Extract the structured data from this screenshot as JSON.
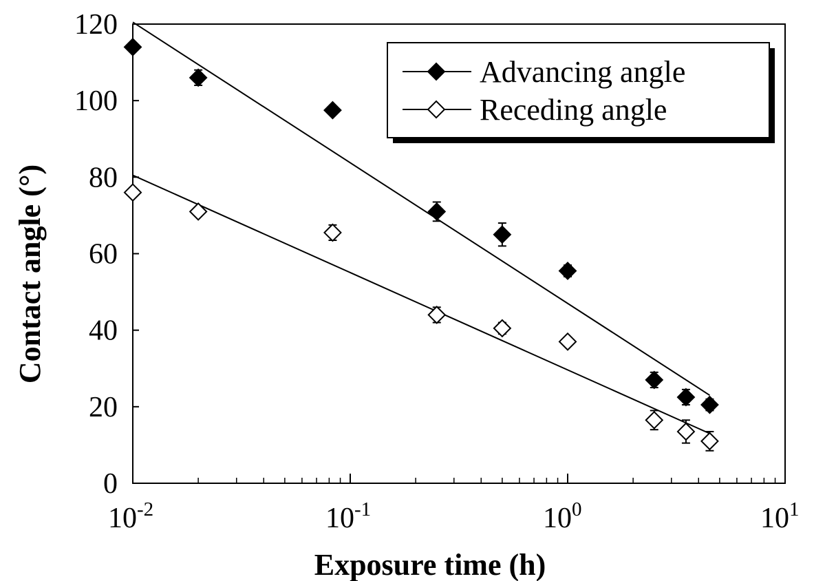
{
  "chart_data": {
    "type": "scatter",
    "xlabel": "Exposure time (h)",
    "ylabel": "Contact angle (°)",
    "x_scale": "log",
    "xlim": [
      0.01,
      10
    ],
    "ylim": [
      0,
      120
    ],
    "grid": false,
    "legend_position": "top-right",
    "x_ticks": [
      {
        "value": 0.01,
        "base": "10",
        "exp": "-2"
      },
      {
        "value": 0.1,
        "base": "10",
        "exp": "-1"
      },
      {
        "value": 1,
        "base": "10",
        "exp": "0"
      },
      {
        "value": 10,
        "base": "10",
        "exp": "1"
      }
    ],
    "y_ticks": [
      0,
      20,
      40,
      60,
      80,
      100,
      120
    ],
    "series": [
      {
        "name": "Advancing angle",
        "marker": "diamond-filled",
        "color": "#000000",
        "points": [
          {
            "x": 0.01,
            "y": 114,
            "err": 1
          },
          {
            "x": 0.02,
            "y": 106,
            "err": 2
          },
          {
            "x": 0.083,
            "y": 97.5,
            "err": 1
          },
          {
            "x": 0.25,
            "y": 71,
            "err": 2.5
          },
          {
            "x": 0.5,
            "y": 65,
            "err": 3
          },
          {
            "x": 1,
            "y": 55.5,
            "err": 1.5
          },
          {
            "x": 2.5,
            "y": 27,
            "err": 2
          },
          {
            "x": 3.5,
            "y": 22.5,
            "err": 2
          },
          {
            "x": 4.5,
            "y": 20.5,
            "err": 1.5
          }
        ],
        "fit_line": [
          {
            "x": 0.01,
            "y": 120.5
          },
          {
            "x": 4.5,
            "y": 23
          }
        ]
      },
      {
        "name": "Receding angle",
        "marker": "diamond-open",
        "color": "#000000",
        "points": [
          {
            "x": 0.01,
            "y": 76,
            "err": 1
          },
          {
            "x": 0.02,
            "y": 71,
            "err": 1
          },
          {
            "x": 0.083,
            "y": 65.5,
            "err": 2
          },
          {
            "x": 0.25,
            "y": 44,
            "err": 2
          },
          {
            "x": 0.5,
            "y": 40.5,
            "err": 1.5
          },
          {
            "x": 1,
            "y": 37,
            "err": 1
          },
          {
            "x": 2.5,
            "y": 16.5,
            "err": 2.5
          },
          {
            "x": 3.5,
            "y": 13.5,
            "err": 3
          },
          {
            "x": 4.5,
            "y": 11,
            "err": 2.5
          }
        ],
        "fit_line": [
          {
            "x": 0.01,
            "y": 80.5
          },
          {
            "x": 4.5,
            "y": 13
          }
        ]
      }
    ]
  }
}
